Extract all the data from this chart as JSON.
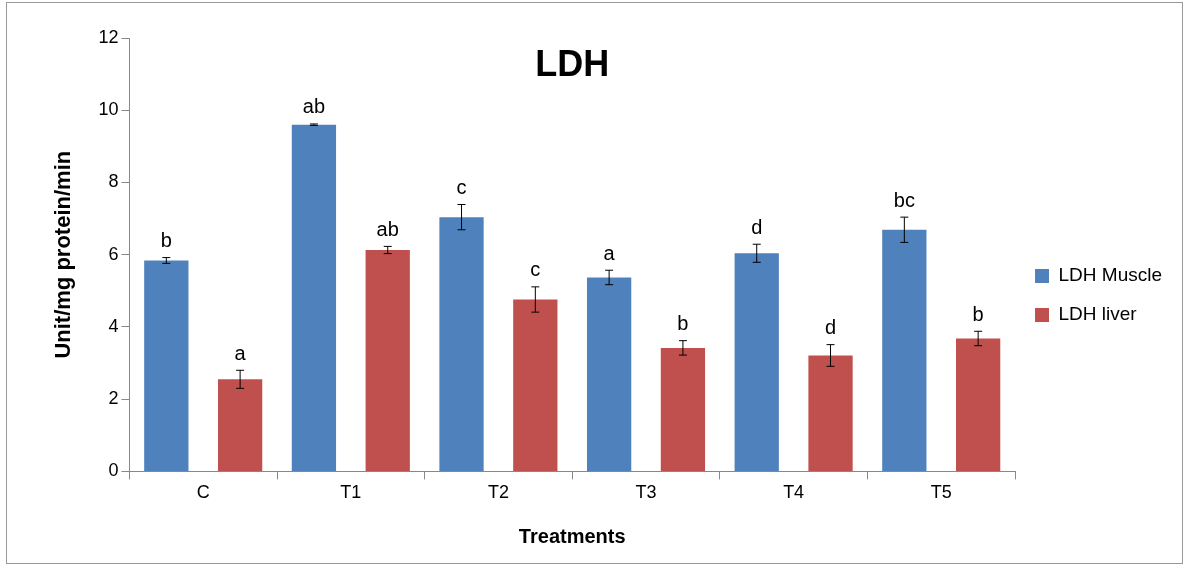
{
  "chart_data": {
    "type": "bar",
    "title": "LDH",
    "xlabel": "Treatments",
    "ylabel": "Unit/mg protein/min",
    "categories": [
      "C",
      "T1",
      "T2",
      "T3",
      "T4",
      "T5"
    ],
    "series": [
      {
        "name": "LDH Muscle",
        "color": "#4f81bd",
        "values": [
          5.84,
          9.6,
          7.04,
          5.37,
          6.04,
          6.69
        ],
        "errors": [
          0.08,
          0.02,
          0.35,
          0.2,
          0.25,
          0.35
        ],
        "value_labels": [
          "b",
          "ab",
          "c",
          "a",
          "d",
          "bc"
        ]
      },
      {
        "name": "LDH liver",
        "color": "#c0504d",
        "values": [
          2.55,
          6.13,
          4.76,
          3.42,
          3.21,
          3.68
        ],
        "errors": [
          0.25,
          0.1,
          0.35,
          0.2,
          0.3,
          0.2
        ],
        "value_labels": [
          "a",
          "ab",
          "c",
          "b",
          "d",
          "b"
        ]
      }
    ],
    "ylim": [
      0,
      12
    ],
    "yticks": [
      0,
      2,
      4,
      6,
      8,
      10,
      12
    ],
    "grid": false,
    "legend": "right"
  }
}
